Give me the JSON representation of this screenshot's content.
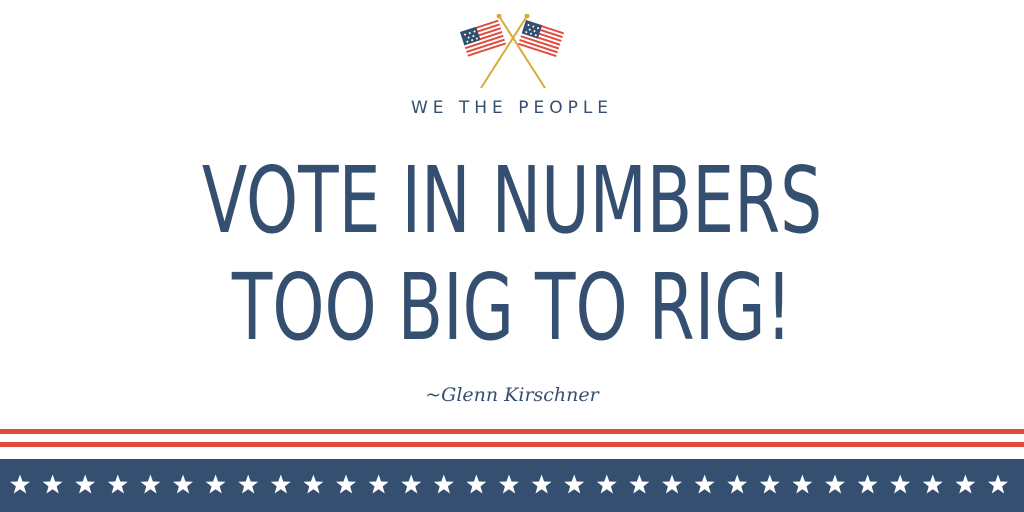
{
  "brand": {
    "flag_icon": "crossed-american-flags-icon",
    "star_icon": "white-star-icon"
  },
  "eyebrow": "WE THE PEOPLE",
  "headline": {
    "line1": "VOTE IN NUMBERS",
    "line2": "TOO BIG TO RIG!"
  },
  "attribution": "~Glenn Kirschner",
  "colors": {
    "navy": "#344f6f",
    "red": "#e04b3c",
    "white": "#ffffff",
    "gold": "#d9a93a"
  }
}
